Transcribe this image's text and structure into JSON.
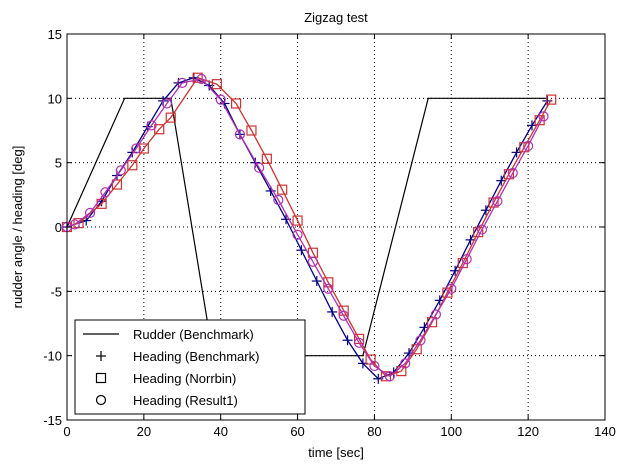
{
  "chart_data": {
    "type": "line",
    "title": "Zigzag test",
    "xlabel": "time [sec]",
    "ylabel": "rudder angle / heading [deg]",
    "xlim": [
      0,
      140
    ],
    "ylim": [
      -15,
      15
    ],
    "xticks": [
      0,
      20,
      40,
      60,
      80,
      100,
      120,
      140
    ],
    "yticks": [
      -15,
      -10,
      -5,
      0,
      5,
      10,
      15
    ],
    "xtick_labels": [
      "0",
      "20",
      "40",
      "60",
      "80",
      "100",
      "120",
      "140"
    ],
    "ytick_labels": [
      "-15",
      "-10",
      "-5",
      "0",
      "5",
      "10",
      "15"
    ],
    "grid": true,
    "legend_position": "bottom-left",
    "series": [
      {
        "name": "Rudder (Benchmark)",
        "style": "line",
        "color": "#000000",
        "x": [
          0,
          15,
          27,
          38,
          77,
          94,
          125
        ],
        "y": [
          0,
          10,
          10,
          -10,
          -10,
          10,
          10
        ]
      },
      {
        "name": "Heading (Benchmark)",
        "style": "plus",
        "color": "#00007f",
        "x": [
          0,
          5,
          9,
          13,
          17,
          21,
          25,
          29,
          33,
          37,
          41,
          45,
          49,
          53,
          57,
          61,
          65,
          69,
          73,
          77,
          81,
          85,
          89,
          93,
          97,
          101,
          105,
          109,
          113,
          117,
          121,
          125
        ],
        "y": [
          0,
          0.5,
          2.0,
          4.0,
          5.8,
          7.8,
          9.8,
          11.2,
          11.6,
          11.0,
          9.6,
          7.2,
          5.0,
          2.8,
          0.6,
          -1.8,
          -4.2,
          -6.6,
          -8.8,
          -10.6,
          -11.8,
          -11.3,
          -9.8,
          -7.8,
          -5.7,
          -3.4,
          -1.0,
          1.3,
          3.6,
          5.8,
          7.9,
          9.8
        ]
      },
      {
        "name": "Heading (Norrbin)",
        "style": "square",
        "color": "#cc3333",
        "x": [
          0,
          3,
          9,
          13,
          17,
          20,
          24,
          27,
          34,
          39,
          44,
          48,
          52,
          56,
          60,
          64,
          68,
          72,
          76,
          79,
          83,
          87,
          91,
          95,
          99,
          103,
          107,
          111,
          115,
          119,
          123,
          126
        ],
        "y": [
          0,
          0.3,
          1.8,
          3.3,
          4.8,
          6.1,
          7.6,
          8.5,
          11.6,
          11.1,
          9.6,
          7.5,
          5.3,
          2.9,
          0.5,
          -2.0,
          -4.3,
          -6.5,
          -8.7,
          -10.3,
          -11.6,
          -11.2,
          -9.5,
          -7.4,
          -5.1,
          -2.8,
          -0.4,
          1.9,
          4.1,
          6.2,
          8.3,
          9.9
        ]
      },
      {
        "name": "Heading (Result1)",
        "style": "circle",
        "color": "#b030b0",
        "x": [
          0,
          2,
          6,
          10,
          14,
          18,
          22,
          26,
          30,
          35,
          40,
          45,
          50,
          55,
          60,
          64,
          68,
          72,
          76,
          80,
          84,
          88,
          92,
          96,
          100,
          104,
          108,
          112,
          116,
          120,
          124
        ],
        "y": [
          0,
          0.2,
          1.1,
          2.7,
          4.4,
          6.1,
          7.9,
          9.6,
          11.2,
          11.5,
          9.9,
          7.2,
          4.6,
          2.1,
          -0.6,
          -2.7,
          -4.8,
          -6.9,
          -9.0,
          -10.8,
          -11.6,
          -10.6,
          -8.8,
          -6.8,
          -4.8,
          -2.5,
          -0.2,
          2.0,
          4.2,
          6.3,
          8.6
        ]
      }
    ]
  }
}
